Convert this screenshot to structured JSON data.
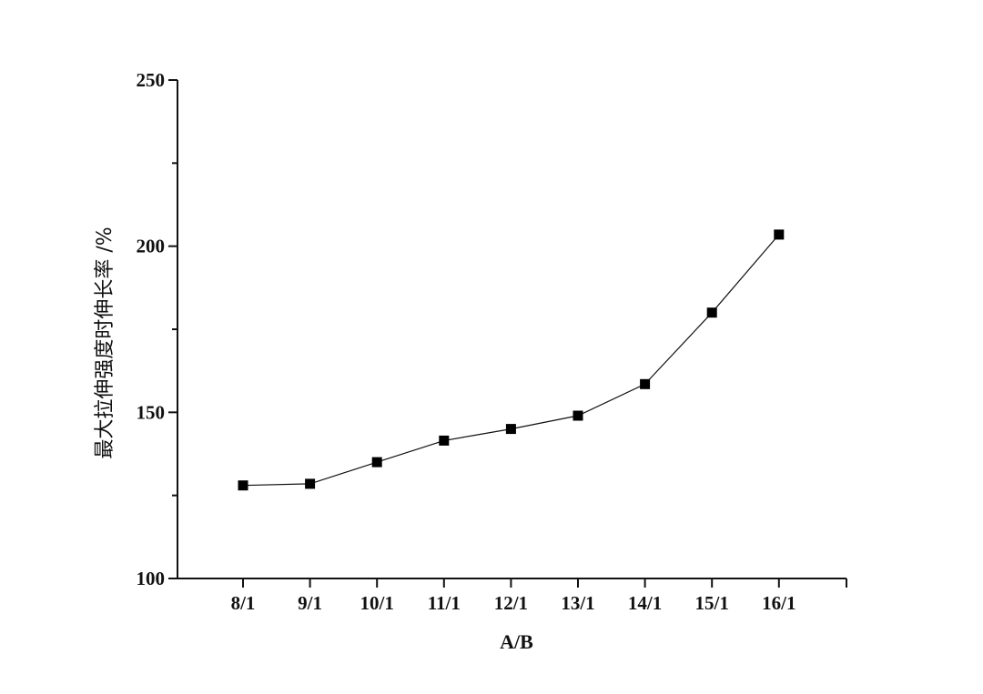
{
  "chart_data": {
    "type": "line",
    "xlabel": "A/B",
    "ylabel": "最大拉伸强度时伸长率 /%",
    "categories": [
      "8/1",
      "9/1",
      "10/1",
      "11/1",
      "12/1",
      "13/1",
      "14/1",
      "15/1",
      "16/1"
    ],
    "series": [
      {
        "values": [
          128,
          128.5,
          135,
          141.5,
          145,
          149,
          158.5,
          180,
          203.5
        ],
        "marker": "square",
        "color": "#000000"
      }
    ],
    "ylim": [
      100,
      250
    ],
    "yticks": [
      100,
      150,
      200,
      250
    ],
    "grid": false
  }
}
